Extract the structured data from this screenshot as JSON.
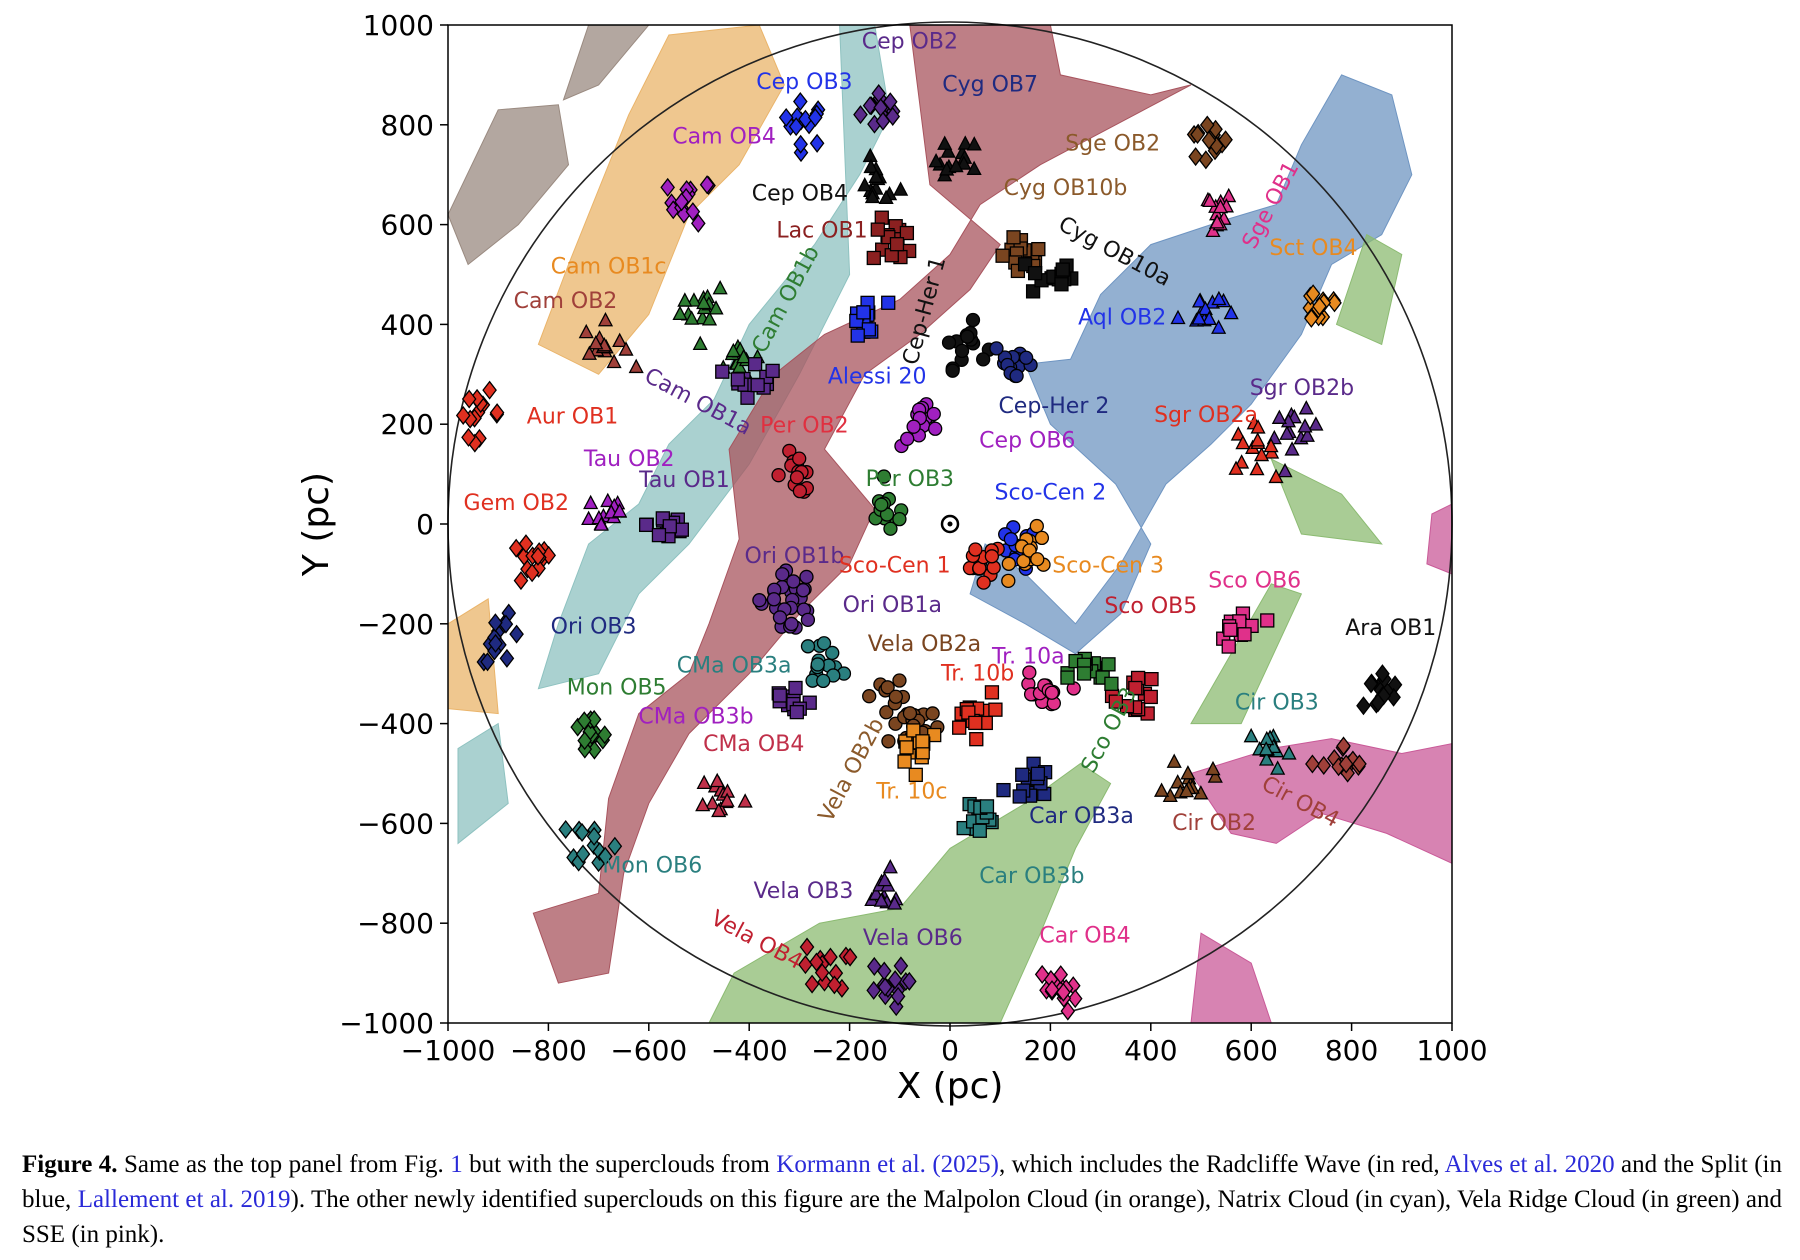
{
  "chart_data": {
    "type": "scatter",
    "xlabel": "X (pc)",
    "ylabel": "Y (pc)",
    "xlim": [
      -1000,
      1000
    ],
    "ylim": [
      -1000,
      1000
    ],
    "xticks": [
      "−1000",
      "−800",
      "−600",
      "−400",
      "−200",
      "0",
      "200",
      "400",
      "600",
      "800",
      "1000"
    ],
    "yticks": [
      "1000",
      "800",
      "600",
      "400",
      "200",
      "0",
      "−200",
      "−400",
      "−600",
      "−800",
      "−1000"
    ],
    "grid": false,
    "circle_radius_pc": 1000,
    "sun_marker": [
      0,
      0
    ],
    "cloud_colors": {
      "radcliffe_wave": "#a8545e",
      "split": "#6f95c2",
      "malpolon": "#eab46a",
      "natrix": "#8ec2c0",
      "vela_ridge": "#8cbb72",
      "sse": "#c95a98",
      "other": "#9a8a80"
    },
    "groups": [
      {
        "name": "Cep OB2",
        "color": "#5a2a8a",
        "marker": "diamond",
        "center": [
          -133,
          832
        ],
        "label_at": [
          -80,
          969
        ],
        "rot": 0
      },
      {
        "name": "Cep OB3",
        "color": "#2233e8",
        "marker": "diamond",
        "center": [
          -290,
          802
        ],
        "label_at": [
          -290,
          888
        ],
        "rot": 0
      },
      {
        "name": "Cyg OB7",
        "color": "#111111",
        "marker": "triangle",
        "center": [
          16,
          728
        ],
        "label_at": [
          80,
          883
        ],
        "rot": 0,
        "text_color": "#1f2a80"
      },
      {
        "name": "Cam OB4",
        "color": "#a020c0",
        "marker": "diamond",
        "center": [
          -517,
          647
        ],
        "label_at": [
          -450,
          779
        ],
        "rot": 0
      },
      {
        "name": "Sge OB2",
        "color": "#7a4520",
        "marker": "diamond",
        "center": [
          510,
          763
        ],
        "label_at": [
          324,
          765
        ],
        "rot": 0,
        "text_color": "#8b5a2b"
      },
      {
        "name": "Cep OB4",
        "color": "#111111",
        "marker": "triangle",
        "center": [
          -145,
          682
        ],
        "label_at": [
          -299,
          664
        ],
        "rot": 0
      },
      {
        "name": "Cyg OB10b",
        "color": "#7a4520",
        "marker": "square",
        "center": [
          143,
          532
        ],
        "label_at": [
          230,
          675
        ],
        "rot": 0,
        "text_color": "#8b5a2b"
      },
      {
        "name": "Lac OB1",
        "color": "#8b2020",
        "marker": "square",
        "center": [
          -110,
          566
        ],
        "label_at": [
          -255,
          590
        ],
        "rot": 0
      },
      {
        "name": "Cyg OB10a",
        "color": "#111111",
        "marker": "square",
        "center": [
          200,
          497
        ],
        "label_at": [
          329,
          548
        ],
        "rot": 28
      },
      {
        "name": "Sge OB1",
        "color": "#e0308a",
        "marker": "triangle",
        "center": [
          522,
          624
        ],
        "label_at": [
          637,
          640
        ],
        "rot": -62
      },
      {
        "name": "Sct OB4",
        "color": "#e88a20",
        "marker": "diamond",
        "center": [
          740,
          439
        ],
        "label_at": [
          724,
          555
        ],
        "rot": 0
      },
      {
        "name": "Cam OB1c",
        "color": "#2e7d32",
        "marker": "triangle",
        "center": [
          -490,
          439
        ],
        "label_at": [
          -680,
          518
        ],
        "rot": 0,
        "text_color": "#e88a20"
      },
      {
        "name": "Cam OB1b",
        "color": "#2e7d32",
        "marker": "triangle",
        "center": [
          -421,
          335
        ],
        "label_at": [
          -329,
          451
        ],
        "rot": -62
      },
      {
        "name": "Cep-Her 1",
        "color": "#111111",
        "marker": "circle",
        "center": [
          28,
          358
        ],
        "label_at": [
          -53,
          428
        ],
        "rot": -75
      },
      {
        "name": "Cam OB2",
        "color": "#a0403a",
        "marker": "triangle",
        "center": [
          -685,
          358
        ],
        "label_at": [
          -766,
          449
        ],
        "rot": 0
      },
      {
        "name": "Aql OB2",
        "color": "#2233e8",
        "marker": "triangle",
        "center": [
          499,
          428
        ],
        "label_at": [
          343,
          416
        ],
        "rot": 0
      },
      {
        "name": "Alessi 20",
        "color": "#2233e8",
        "marker": "square",
        "center": [
          -168,
          405
        ],
        "label_at": [
          -145,
          298
        ],
        "rot": 0
      },
      {
        "name": "Cam OB1a",
        "color": "#5a2a8a",
        "marker": "square",
        "center": [
          -390,
          300
        ],
        "label_at": [
          -501,
          247
        ],
        "rot": 28
      },
      {
        "name": "Sgr OB2b",
        "color": "#5a2a8a",
        "marker": "triangle",
        "center": [
          690,
          180
        ],
        "label_at": [
          701,
          275
        ],
        "rot": 0
      },
      {
        "name": "Cep-Her 2",
        "color": "#1f2a80",
        "marker": "circle",
        "center": [
          131,
          324
        ],
        "label_at": [
          207,
          238
        ],
        "rot": 0
      },
      {
        "name": "Aur OB1",
        "color": "#e03020",
        "marker": "diamond",
        "center": [
          -938,
          220
        ],
        "label_at": [
          -752,
          217
        ],
        "rot": 0
      },
      {
        "name": "Per OB2",
        "color": "#c02030",
        "marker": "circle",
        "center": [
          -306,
          104
        ],
        "label_at": [
          -290,
          199
        ],
        "rot": 0,
        "text_color": "#e03040"
      },
      {
        "name": "Sgr OB2a",
        "color": "#e03020",
        "marker": "triangle",
        "center": [
          600,
          150
        ],
        "label_at": [
          510,
          220
        ],
        "rot": 0
      },
      {
        "name": "Cep OB6",
        "color": "#a020c0",
        "marker": "circle",
        "center": [
          -53,
          197
        ],
        "label_at": [
          154,
          169
        ],
        "rot": 0
      },
      {
        "name": "Tau OB2",
        "color": "#a020c0",
        "marker": "triangle",
        "center": [
          -685,
          23
        ],
        "label_at": [
          -639,
          132
        ],
        "rot": 0
      },
      {
        "name": "Tau OB1",
        "color": "#5a2a8a",
        "marker": "square",
        "center": [
          -559,
          0
        ],
        "label_at": [
          -529,
          90
        ],
        "rot": 0
      },
      {
        "name": "Per OB3",
        "color": "#2e7d32",
        "marker": "circle",
        "center": [
          -122,
          23
        ],
        "label_at": [
          -80,
          92
        ],
        "rot": 0
      },
      {
        "name": "Sco-Cen 2",
        "color": "#2233e8",
        "marker": "circle",
        "center": [
          131,
          -53
        ],
        "label_at": [
          200,
          65
        ],
        "rot": 0
      },
      {
        "name": "Gem OB2",
        "color": "#e03020",
        "marker": "diamond",
        "center": [
          -834,
          -81
        ],
        "label_at": [
          -864,
          44
        ],
        "rot": 0
      },
      {
        "name": "Ori OB1b",
        "color": "#5a2a8a",
        "marker": "circle",
        "center": [
          -317,
          -140
        ],
        "label_at": [
          -310,
          -62
        ],
        "rot": 0
      },
      {
        "name": "Sco-Cen 1",
        "color": "#e03020",
        "marker": "circle",
        "center": [
          62,
          -81
        ],
        "label_at": [
          -110,
          -81
        ],
        "rot": 0
      },
      {
        "name": "Sco-Cen 3",
        "color": "#e88a20",
        "marker": "circle",
        "center": [
          166,
          -58
        ],
        "label_at": [
          315,
          -81
        ],
        "rot": 0
      },
      {
        "name": "Sco OB6",
        "color": "#e0308a",
        "marker": "square",
        "center": [
          579,
          -208
        ],
        "label_at": [
          607,
          -111
        ],
        "rot": 0
      },
      {
        "name": "Ori OB1a",
        "color": "#5a2a8a",
        "marker": "circle",
        "center": [
          -317,
          -175
        ],
        "label_at": [
          -115,
          -160
        ],
        "rot": 0
      },
      {
        "name": "Sco OB5",
        "color": "#c02030",
        "marker": "square",
        "center": [
          372,
          -340
        ],
        "label_at": [
          400,
          -162
        ],
        "rot": 0
      },
      {
        "name": "Ori OB3",
        "color": "#1f2a80",
        "marker": "diamond",
        "center": [
          -892,
          -231
        ],
        "label_at": [
          -710,
          -203
        ],
        "rot": 0
      },
      {
        "name": "Ara OB1",
        "color": "#111111",
        "marker": "diamond",
        "center": [
          855,
          -335
        ],
        "label_at": [
          878,
          -206
        ],
        "rot": 0
      },
      {
        "name": "Vela OB2a",
        "color": "#7a4520",
        "marker": "circle",
        "center": [
          -110,
          -347
        ],
        "label_at": [
          -51,
          -238
        ],
        "rot": 0
      },
      {
        "name": "Tr. 10a",
        "color": "#e0308a",
        "marker": "circle",
        "center": [
          177,
          -347
        ],
        "label_at": [
          156,
          -264
        ],
        "rot": 0,
        "text_color": "#a020c0"
      },
      {
        "name": "CMa OB3a",
        "color": "#2a7f7f",
        "marker": "circle",
        "center": [
          -248,
          -277
        ],
        "label_at": [
          -430,
          -282
        ],
        "rot": 0
      },
      {
        "name": "Tr. 10b",
        "color": "#e03020",
        "marker": "square",
        "center": [
          39,
          -382
        ],
        "label_at": [
          55,
          -298
        ],
        "rot": 0
      },
      {
        "name": "Mon OB5",
        "color": "#2e7d32",
        "marker": "diamond",
        "center": [
          -720,
          -428
        ],
        "label_at": [
          -664,
          -326
        ],
        "rot": 0
      },
      {
        "name": "Sco OB3",
        "color": "#2e7d32",
        "marker": "square",
        "center": [
          280,
          -300
        ],
        "label_at": [
          315,
          -412
        ],
        "rot": -62
      },
      {
        "name": "Cir OB3",
        "color": "#2a7f7f",
        "marker": "triangle",
        "center": [
          637,
          -451
        ],
        "label_at": [
          651,
          -356
        ],
        "rot": 0
      },
      {
        "name": "CMa OB3b",
        "color": "#5a2a8a",
        "marker": "square",
        "center": [
          -317,
          -358
        ],
        "label_at": [
          -506,
          -384
        ],
        "rot": 0,
        "text_color": "#a020c0"
      },
      {
        "name": "CMa OB4",
        "color": "#c0304a",
        "marker": "triangle",
        "center": [
          -455,
          -543
        ],
        "label_at": [
          -391,
          -439
        ],
        "rot": 0
      },
      {
        "name": "Vela OB2b",
        "color": "#7a4520",
        "marker": "circle",
        "center": [
          -60,
          -400
        ],
        "label_at": [
          -198,
          -492
        ],
        "rot": -62,
        "text_color": "#8b5a2b"
      },
      {
        "name": "Tr. 10c",
        "color": "#e88a20",
        "marker": "square",
        "center": [
          -64,
          -440
        ],
        "label_at": [
          -76,
          -534
        ],
        "rot": 0
      },
      {
        "name": "Cir OB4",
        "color": "#a0403a",
        "marker": "diamond",
        "center": [
          786,
          -486
        ],
        "label_at": [
          699,
          -555
        ],
        "rot": 28
      },
      {
        "name": "Car OB3a",
        "color": "#1f2a80",
        "marker": "square",
        "center": [
          154,
          -520
        ],
        "label_at": [
          262,
          -583
        ],
        "rot": 0
      },
      {
        "name": "Cir OB2",
        "color": "#7a4520",
        "marker": "triangle",
        "center": [
          476,
          -509
        ],
        "label_at": [
          526,
          -597
        ],
        "rot": 0,
        "text_color": "#a0403a"
      },
      {
        "name": "Mon OB6",
        "color": "#2a7f7f",
        "marker": "diamond",
        "center": [
          -708,
          -636
        ],
        "label_at": [
          -593,
          -682
        ],
        "rot": 0
      },
      {
        "name": "Car OB3b",
        "color": "#2a7f7f",
        "marker": "square",
        "center": [
          51,
          -590
        ],
        "label_at": [
          163,
          -703
        ],
        "rot": 0
      },
      {
        "name": "Vela OB3",
        "color": "#5a2a8a",
        "marker": "triangle",
        "center": [
          -133,
          -740
        ],
        "label_at": [
          -292,
          -733
        ],
        "rot": 0
      },
      {
        "name": "Vela OB6",
        "color": "#5a2a8a",
        "marker": "diamond",
        "center": [
          -133,
          -925
        ],
        "label_at": [
          -74,
          -828
        ],
        "rot": 0
      },
      {
        "name": "Car OB4",
        "color": "#e0308a",
        "marker": "diamond",
        "center": [
          211,
          -936
        ],
        "label_at": [
          269,
          -823
        ],
        "rot": 0
      },
      {
        "name": "Vela OB4",
        "color": "#c02030",
        "marker": "diamond",
        "center": [
          -248,
          -890
        ],
        "label_at": [
          -384,
          -832
        ],
        "rot": 28
      }
    ]
  },
  "caption": {
    "label": "Figure 4.",
    "t1": " Same as the top panel from Fig. ",
    "ref_fig": "1",
    "t2": " but with the superclouds from ",
    "ref_kormann": "Kormann et al. (2025)",
    "t3": ", which includes the Radcliffe Wave (in red, ",
    "ref_alves": "Alves et al. 2020",
    "t4": " and the Split (in blue, ",
    "ref_lallement": "Lallement et al. 2019",
    "t5": "). The other newly identified superclouds on this figure are the Malpolon Cloud (in orange), Natrix Cloud (in cyan), Vela Ridge Cloud (in green) and SSE (in pink)."
  }
}
